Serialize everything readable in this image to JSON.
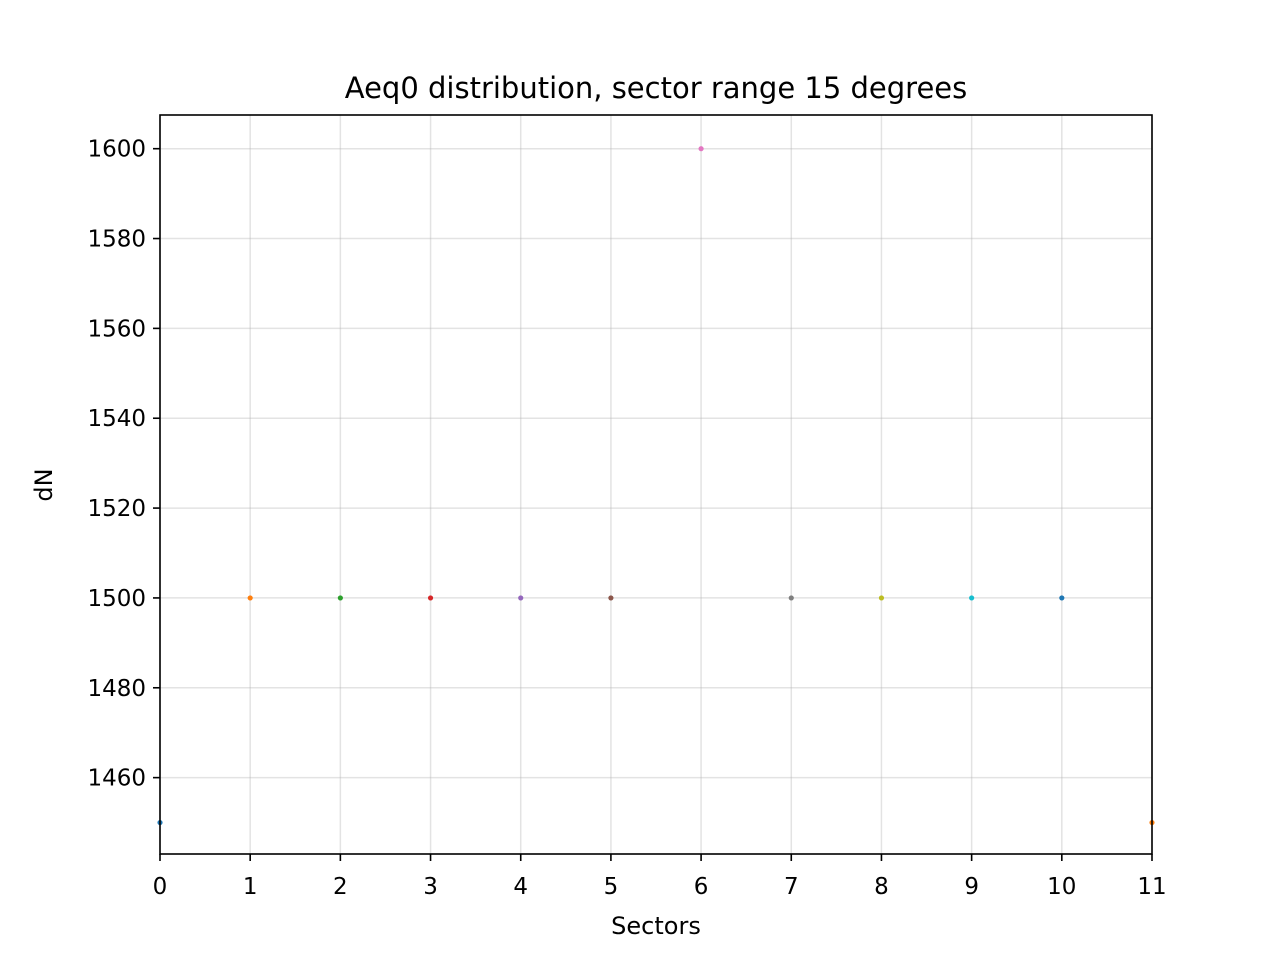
{
  "chart_data": {
    "type": "scatter",
    "title": "Aeq0 distribution, sector range 15 degrees",
    "xlabel": "Sectors",
    "ylabel": "dN",
    "xlim": [
      0,
      11
    ],
    "ylim": [
      1443,
      1607.5
    ],
    "xticks": [
      0,
      1,
      2,
      3,
      4,
      5,
      6,
      7,
      8,
      9,
      10,
      11
    ],
    "yticks": [
      1460,
      1480,
      1500,
      1520,
      1540,
      1560,
      1580,
      1600
    ],
    "grid": true,
    "points": [
      {
        "x": 0,
        "y": 1450,
        "color": "#1f77b4"
      },
      {
        "x": 1,
        "y": 1500,
        "color": "#ff7f0e"
      },
      {
        "x": 2,
        "y": 1500,
        "color": "#2ca02c"
      },
      {
        "x": 3,
        "y": 1500,
        "color": "#d62728"
      },
      {
        "x": 4,
        "y": 1500,
        "color": "#9467bd"
      },
      {
        "x": 5,
        "y": 1500,
        "color": "#8c564b"
      },
      {
        "x": 6,
        "y": 1600,
        "color": "#e377c2"
      },
      {
        "x": 7,
        "y": 1500,
        "color": "#7f7f7f"
      },
      {
        "x": 8,
        "y": 1500,
        "color": "#bcbd22"
      },
      {
        "x": 9,
        "y": 1500,
        "color": "#17becf"
      },
      {
        "x": 10,
        "y": 1500,
        "color": "#1f77b4"
      },
      {
        "x": 11,
        "y": 1450,
        "color": "#ff7f0e"
      }
    ]
  }
}
